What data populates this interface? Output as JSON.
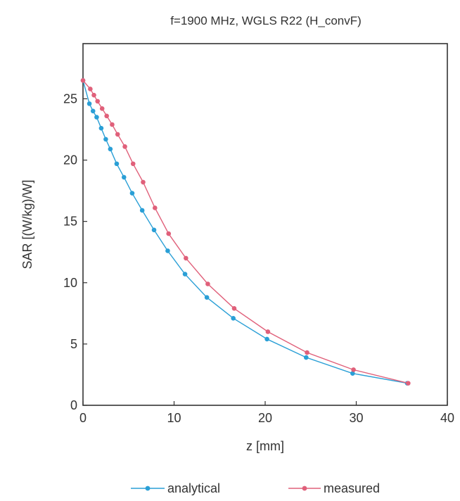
{
  "chart_data": {
    "type": "line",
    "title": "f=1900 MHz, WGLS R22 (H_convF)",
    "xlabel": "z [mm]",
    "ylabel": "SAR [(W/kg)/W]",
    "xlim": [
      0,
      40
    ],
    "ylim": [
      0,
      29.5
    ],
    "xticks": [
      0,
      10,
      20,
      30,
      40
    ],
    "yticks": [
      0,
      5,
      10,
      15,
      20,
      25
    ],
    "grid": false,
    "legend_position": "bottom-center",
    "series": [
      {
        "name": "analytical",
        "color": "#2a9fd6",
        "x": [
          0,
          0.7,
          1.1,
          1.5,
          2.0,
          2.5,
          3.0,
          3.7,
          4.5,
          5.4,
          6.5,
          7.8,
          9.3,
          11.2,
          13.6,
          16.5,
          20.2,
          24.5,
          29.6,
          35.6
        ],
        "y": [
          26.5,
          24.6,
          24.0,
          23.5,
          22.6,
          21.7,
          20.9,
          19.7,
          18.6,
          17.3,
          15.9,
          14.3,
          12.6,
          10.7,
          8.8,
          7.1,
          5.4,
          3.9,
          2.6,
          1.8
        ]
      },
      {
        "name": "measured",
        "color": "#e0607a",
        "x": [
          0,
          0.8,
          1.2,
          1.6,
          2.1,
          2.6,
          3.2,
          3.8,
          4.6,
          5.5,
          6.6,
          7.9,
          9.4,
          11.3,
          13.7,
          16.6,
          20.3,
          24.6,
          29.7,
          35.7
        ],
        "y": [
          26.5,
          25.8,
          25.3,
          24.8,
          24.2,
          23.6,
          22.9,
          22.1,
          21.1,
          19.7,
          18.2,
          16.1,
          14.0,
          12.0,
          9.9,
          7.9,
          6.0,
          4.3,
          2.9,
          1.8
        ]
      }
    ]
  }
}
